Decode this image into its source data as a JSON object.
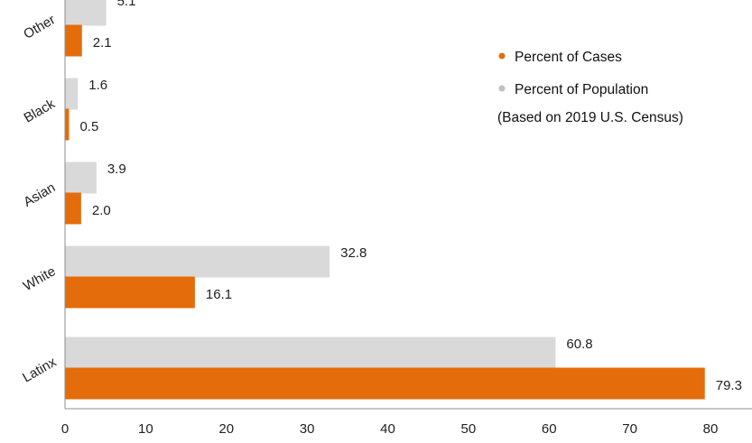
{
  "chart_data": {
    "type": "bar",
    "orientation": "horizontal",
    "categories": [
      "Other",
      "Black",
      "Asian",
      "White",
      "Latinx"
    ],
    "series": [
      {
        "name": "Percent of Population",
        "color": "#d9d9d9",
        "values": [
          5.1,
          1.6,
          3.9,
          32.8,
          60.8
        ]
      },
      {
        "name": "Percent of Cases",
        "color": "#e46c0a",
        "values": [
          2.1,
          0.5,
          2.0,
          16.1,
          79.3
        ]
      }
    ],
    "xlim": [
      0,
      80
    ],
    "xticks": [
      "0",
      "10",
      "20",
      "30",
      "40",
      "50",
      "60",
      "70",
      "80"
    ],
    "legend": {
      "position": "top-right",
      "items": [
        {
          "label": "Percent of Cases",
          "color": "#e46c0a"
        },
        {
          "label": "Percent of Population",
          "color": "#c0c0c0"
        }
      ],
      "note": "(Based on 2019 U.S. Census)"
    },
    "grid": false,
    "title": "",
    "xlabel": "",
    "ylabel": ""
  }
}
